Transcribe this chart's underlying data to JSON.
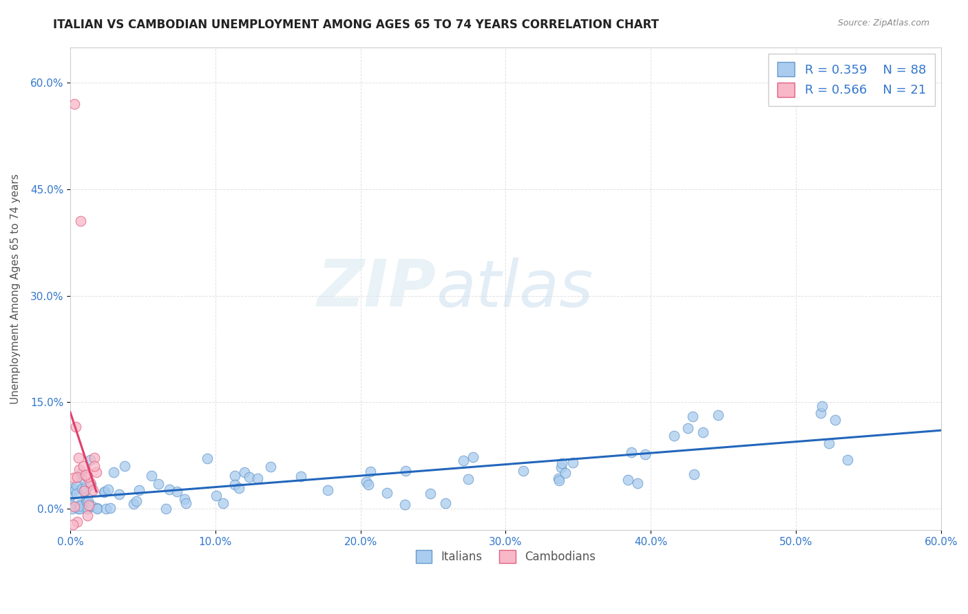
{
  "title": "ITALIAN VS CAMBODIAN UNEMPLOYMENT AMONG AGES 65 TO 74 YEARS CORRELATION CHART",
  "source": "Source: ZipAtlas.com",
  "ylabel": "Unemployment Among Ages 65 to 74 years",
  "xlim": [
    0,
    0.6
  ],
  "ylim": [
    -0.03,
    0.65
  ],
  "xticks": [
    0.0,
    0.1,
    0.2,
    0.3,
    0.4,
    0.5,
    0.6
  ],
  "yticks": [
    0.0,
    0.15,
    0.3,
    0.45,
    0.6
  ],
  "italian_color": "#aaccee",
  "italian_edge": "#6699cc",
  "cambodian_color": "#f8b8c8",
  "cambodian_edge": "#e06080",
  "trend_italian_color": "#2266bb",
  "trend_cambodian_color": "#e0406a",
  "legend_italian_R": "0.359",
  "legend_italian_N": "88",
  "legend_cambodian_R": "0.566",
  "legend_cambodian_N": "21",
  "watermark_zip": "ZIP",
  "watermark_atlas": "atlas",
  "background_color": "#ffffff",
  "grid_color": "#cccccc",
  "title_color": "#222222",
  "label_color": "#555555",
  "tick_color": "#3377cc",
  "source_color": "#888888"
}
